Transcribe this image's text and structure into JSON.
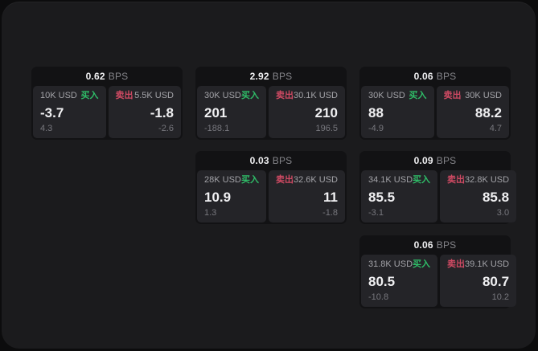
{
  "theme": {
    "outer_bg": "#0c0c0d",
    "panel_bg": "#1b1b1d",
    "card_bg": "#121214",
    "tile_bg": "#242428",
    "buy_color": "#2fbd68",
    "sell_color": "#cf4a63",
    "text_primary": "#f0f0f2",
    "text_secondary": "#a2a2a7",
    "text_dim": "#85858a",
    "text_muted": "#77777d"
  },
  "labels": {
    "bps": "BPS",
    "buy": "买入",
    "sell": "卖出"
  },
  "cards": [
    {
      "col": 1,
      "row": 1,
      "bps": "0.62",
      "buy": {
        "amount": "10K USD",
        "value": "-3.7",
        "delta": "4.3"
      },
      "sell": {
        "amount": "5.5K USD",
        "value": "-1.8",
        "delta": "-2.6"
      }
    },
    {
      "col": 2,
      "row": 1,
      "bps": "2.92",
      "buy": {
        "amount": "30K USD",
        "value": "201",
        "delta": "-188.1"
      },
      "sell": {
        "amount": "30.1K USD",
        "value": "210",
        "delta": "196.5"
      }
    },
    {
      "col": 3,
      "row": 1,
      "bps": "0.06",
      "buy": {
        "amount": "30K USD",
        "value": "88",
        "delta": "-4.9"
      },
      "sell": {
        "amount": "30K USD",
        "value": "88.2",
        "delta": "4.7"
      }
    },
    {
      "col": 2,
      "row": 2,
      "bps": "0.03",
      "buy": {
        "amount": "28K USD",
        "value": "10.9",
        "delta": "1.3"
      },
      "sell": {
        "amount": "32.6K USD",
        "value": "11",
        "delta": "-1.8"
      }
    },
    {
      "col": 3,
      "row": 2,
      "bps": "0.09",
      "buy": {
        "amount": "34.1K USD",
        "value": "85.5",
        "delta": "-3.1"
      },
      "sell": {
        "amount": "32.8K USD",
        "value": "85.8",
        "delta": "3.0"
      }
    },
    {
      "col": 3,
      "row": 3,
      "bps": "0.06",
      "buy": {
        "amount": "31.8K USD",
        "value": "80.5",
        "delta": "-10.8"
      },
      "sell": {
        "amount": "39.1K USD",
        "value": "80.7",
        "delta": "10.2"
      }
    }
  ]
}
